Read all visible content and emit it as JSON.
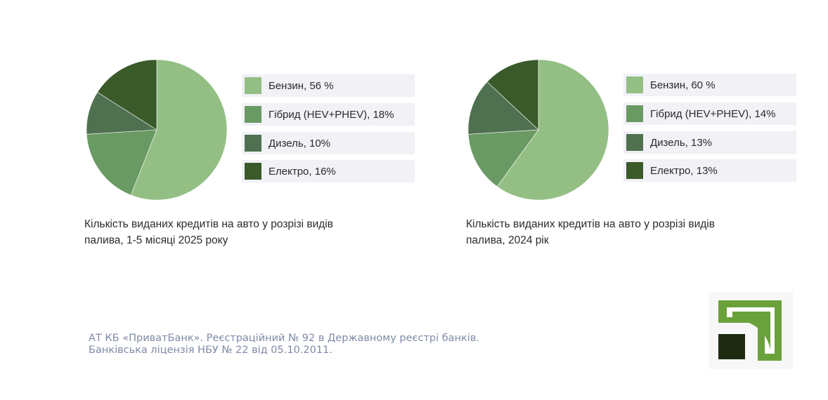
{
  "chart_data": [
    {
      "type": "pie",
      "caption_line1": "Кількість виданих кредитів на авто у розрізі видів",
      "caption_line2": "палива, 1-5 місяці 2025 року",
      "series": [
        {
          "name": "Бензин",
          "value": 56,
          "label": "Бензин, 56 %",
          "color": "#93bf85"
        },
        {
          "name": "Гібрид (HEV+PHEV)",
          "value": 18,
          "label": "Гібрид (HEV+PHEV), 18%",
          "color": "#6a9a63"
        },
        {
          "name": "Дизель",
          "value": 10,
          "label": "Дизель, 10%",
          "color": "#4f7150"
        },
        {
          "name": "Електро",
          "value": 16,
          "label": "Електро, 16%",
          "color": "#3a5a2a"
        }
      ]
    },
    {
      "type": "pie",
      "caption_line1": "Кількість виданих кредитів на авто у розрізі видів",
      "caption_line2": "палива, 2024 рік",
      "series": [
        {
          "name": "Бензин",
          "value": 60,
          "label": "Бензин, 60 %",
          "color": "#93bf85"
        },
        {
          "name": "Гібрид (HEV+PHEV)",
          "value": 14,
          "label": "Гібрид (HEV+PHEV), 14%",
          "color": "#6a9a63"
        },
        {
          "name": "Дизель",
          "value": 13,
          "label": "Дизель, 13%",
          "color": "#4f7150"
        },
        {
          "name": "Електро",
          "value": 13,
          "label": "Електро, 13%",
          "color": "#3a5a2a"
        }
      ]
    }
  ],
  "footer": {
    "line1": "АТ КБ «ПриватБанк». Реєстраційний № 92 в Державному реєстрі банків.",
    "line2": "Банківська ліцензія НБУ № 22 від 05.10.2011."
  },
  "colors": {
    "footer_text": "#7f8aa8",
    "legend_bg": "#f1f1f6"
  },
  "logo": {
    "icon": "privatbank-logo",
    "colors": [
      "#6aa13a",
      "#1e2a12"
    ]
  }
}
